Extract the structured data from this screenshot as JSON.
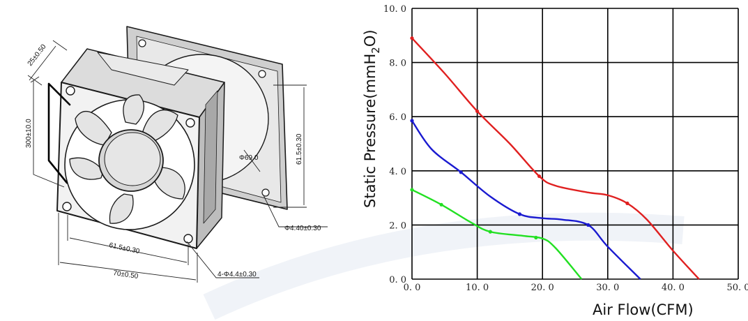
{
  "drawing": {
    "dim_thickness": "25±0.50",
    "dim_cable": "300±10.0",
    "dim_hub": "Φ69.0",
    "dim_hole_pitch_v": "61.5±0.30",
    "dim_hole_pitch_h": "61.5±0.30",
    "dim_width": "70±0.50",
    "dim_mount_hole": "Φ4.40±0.30",
    "dim_holes": "4-Φ4.4±0.30"
  },
  "colors": {
    "red": "#e02020",
    "blue": "#1a1ad0",
    "green": "#22e022",
    "grid": "#000000"
  },
  "chart_data": {
    "type": "line",
    "xlabel": "Air Flow(CFM)",
    "ylabel": "Static Pressure(mmH",
    "ylabel_sub": "2",
    "ylabel_end": "O)",
    "xlim": [
      0,
      50
    ],
    "ylim": [
      0,
      10
    ],
    "x_ticks": [
      "0. 0",
      "10. 0",
      "20. 0",
      "30. 0",
      "40. 0",
      "50. 0"
    ],
    "y_ticks": [
      "0. 0",
      "2. 0",
      "4. 0",
      "6. 0",
      "8. 0",
      "10. 0"
    ],
    "x_grid": [
      0,
      10,
      20,
      30,
      40,
      50
    ],
    "y_grid": [
      0,
      2,
      4,
      6,
      8,
      10
    ],
    "grid": true,
    "series": [
      {
        "color": "#e02020",
        "x": [
          0,
          5,
          10,
          15,
          19.5,
          22,
          27,
          30,
          33,
          36,
          40,
          44
        ],
        "y": [
          8.9,
          7.6,
          6.2,
          5.0,
          3.8,
          3.45,
          3.2,
          3.1,
          2.8,
          2.2,
          1.05,
          0.0
        ],
        "markers": [
          0,
          10,
          19.5,
          33
        ]
      },
      {
        "color": "#1a1ad0",
        "x": [
          0,
          3,
          7.5,
          12,
          16.5,
          20,
          23,
          27,
          30,
          35
        ],
        "y": [
          5.85,
          4.8,
          3.95,
          3.05,
          2.4,
          2.25,
          2.2,
          2.0,
          1.2,
          0.0
        ],
        "markers": [
          0,
          7.5,
          16.5,
          27
        ]
      },
      {
        "color": "#22e022",
        "x": [
          0,
          4.5,
          9,
          12,
          17,
          20,
          22,
          26
        ],
        "y": [
          3.3,
          2.75,
          2.1,
          1.75,
          1.6,
          1.5,
          1.15,
          0.0
        ],
        "markers": [
          0,
          4.5,
          12,
          19
        ]
      }
    ]
  }
}
